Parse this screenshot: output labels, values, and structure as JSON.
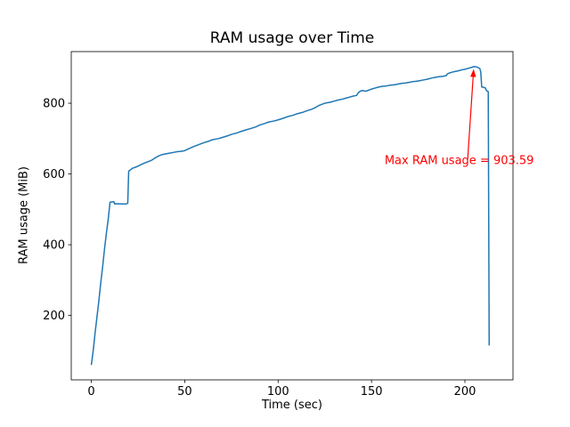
{
  "chart_data": {
    "type": "line",
    "title": "RAM usage over Time",
    "xlabel": "Time (sec)",
    "ylabel": "RAM usage (MiB)",
    "line_color": "#1f77b4",
    "axis_color": "#000000",
    "xlim": [
      -10.75,
      225.75
    ],
    "ylim": [
      18,
      946
    ],
    "xticks": [
      0,
      50,
      100,
      150,
      200
    ],
    "yticks": [
      200,
      400,
      600,
      800
    ],
    "max_value": 903.59,
    "points": [
      [
        0,
        60
      ],
      [
        1,
        100
      ],
      [
        2,
        150
      ],
      [
        3,
        195
      ],
      [
        4,
        240
      ],
      [
        5,
        290
      ],
      [
        6,
        335
      ],
      [
        7,
        385
      ],
      [
        8,
        430
      ],
      [
        9,
        470
      ],
      [
        10,
        520
      ],
      [
        11,
        521
      ],
      [
        12,
        522
      ],
      [
        12.5,
        515
      ],
      [
        13,
        516
      ],
      [
        18,
        515
      ],
      [
        19,
        516
      ],
      [
        19.5,
        517
      ],
      [
        20,
        608
      ],
      [
        20.5,
        610
      ],
      [
        21,
        612
      ],
      [
        22,
        616
      ],
      [
        23,
        618
      ],
      [
        24,
        620
      ],
      [
        25,
        622
      ],
      [
        26,
        625
      ],
      [
        28,
        630
      ],
      [
        30,
        634
      ],
      [
        32,
        638
      ],
      [
        34,
        645
      ],
      [
        35,
        648
      ],
      [
        36,
        651
      ],
      [
        38,
        655
      ],
      [
        40,
        657
      ],
      [
        42,
        659
      ],
      [
        44,
        661
      ],
      [
        46,
        663
      ],
      [
        48,
        664
      ],
      [
        50,
        666
      ],
      [
        52,
        671
      ],
      [
        55,
        678
      ],
      [
        58,
        684
      ],
      [
        60,
        688
      ],
      [
        63,
        693
      ],
      [
        65,
        697
      ],
      [
        68,
        700
      ],
      [
        70,
        703
      ],
      [
        73,
        708
      ],
      [
        75,
        712
      ],
      [
        78,
        716
      ],
      [
        80,
        720
      ],
      [
        83,
        725
      ],
      [
        85,
        728
      ],
      [
        88,
        733
      ],
      [
        90,
        738
      ],
      [
        93,
        743
      ],
      [
        95,
        747
      ],
      [
        98,
        750
      ],
      [
        100,
        753
      ],
      [
        103,
        758
      ],
      [
        105,
        762
      ],
      [
        108,
        766
      ],
      [
        110,
        770
      ],
      [
        113,
        774
      ],
      [
        115,
        778
      ],
      [
        118,
        783
      ],
      [
        120,
        788
      ],
      [
        121,
        791
      ],
      [
        122,
        794
      ],
      [
        124,
        798
      ],
      [
        125,
        800
      ],
      [
        126,
        801
      ],
      [
        128,
        803
      ],
      [
        130,
        806
      ],
      [
        132,
        809
      ],
      [
        134,
        811
      ],
      [
        136,
        814
      ],
      [
        138,
        817
      ],
      [
        140,
        820
      ],
      [
        141,
        821
      ],
      [
        142,
        822
      ],
      [
        143,
        830
      ],
      [
        144,
        834
      ],
      [
        145,
        836
      ],
      [
        146,
        835
      ],
      [
        147,
        834
      ],
      [
        148,
        836
      ],
      [
        149,
        838
      ],
      [
        150,
        840
      ],
      [
        152,
        843
      ],
      [
        154,
        846
      ],
      [
        156,
        848
      ],
      [
        158,
        849
      ],
      [
        160,
        851
      ],
      [
        162,
        852
      ],
      [
        164,
        854
      ],
      [
        166,
        856
      ],
      [
        168,
        857
      ],
      [
        170,
        859
      ],
      [
        172,
        861
      ],
      [
        174,
        862
      ],
      [
        176,
        864
      ],
      [
        178,
        866
      ],
      [
        180,
        868
      ],
      [
        182,
        871
      ],
      [
        184,
        873
      ],
      [
        186,
        875
      ],
      [
        188,
        876
      ],
      [
        190,
        878
      ],
      [
        190.5,
        882
      ],
      [
        191,
        884
      ],
      [
        192,
        886
      ],
      [
        194,
        889
      ],
      [
        196,
        891
      ],
      [
        198,
        894
      ],
      [
        200,
        896
      ],
      [
        202,
        899
      ],
      [
        204,
        902
      ],
      [
        205,
        903.59
      ],
      [
        206,
        903
      ],
      [
        207,
        901
      ],
      [
        208,
        898
      ],
      [
        208.5,
        888
      ],
      [
        209,
        846
      ],
      [
        210,
        845
      ],
      [
        211,
        843
      ],
      [
        211.5,
        836
      ],
      [
        212,
        834
      ],
      [
        212.5,
        833
      ],
      [
        213,
        115
      ]
    ],
    "annotation": {
      "text": "Max RAM usage = 903.59",
      "color": "#ff0000",
      "arrow_start": [
        201.5,
        643
      ],
      "arrow_tip": [
        204.7,
        897
      ],
      "text_pos": [
        157,
        636
      ]
    }
  }
}
